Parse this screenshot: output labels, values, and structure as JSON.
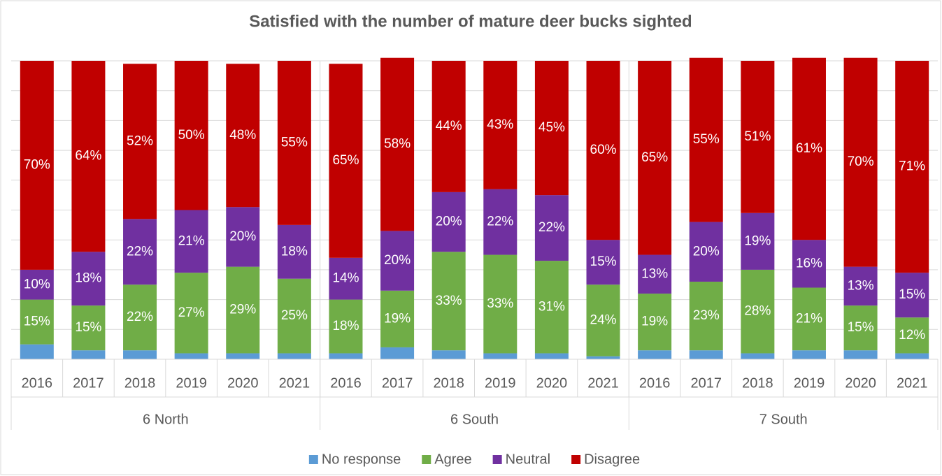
{
  "chart_data": {
    "type": "stacked_bar_100",
    "title": "Satisfied with the number of mature deer bucks sighted",
    "categories": [
      "2016",
      "2017",
      "2018",
      "2019",
      "2020",
      "2021",
      "2016",
      "2017",
      "2018",
      "2019",
      "2020",
      "2021",
      "2016",
      "2017",
      "2018",
      "2019",
      "2020",
      "2021"
    ],
    "groups": [
      "6 North",
      "6 South",
      "7 South"
    ],
    "series": [
      {
        "name": "No response",
        "color": "#5b9bd5",
        "values": [
          5,
          3,
          3,
          2,
          2,
          2,
          2,
          4,
          3,
          2,
          2,
          1,
          3,
          3,
          2,
          3,
          3,
          2
        ]
      },
      {
        "name": "Agree",
        "color": "#70ad47",
        "values": [
          15,
          15,
          22,
          27,
          29,
          25,
          18,
          19,
          33,
          33,
          31,
          24,
          19,
          23,
          28,
          21,
          15,
          12
        ],
        "value_labels": [
          "15%",
          "15%",
          "22%",
          "27%",
          "29%",
          "25%",
          "18%",
          "19%",
          "33%",
          "33%",
          "31%",
          "24%",
          "19%",
          "23%",
          "28%",
          "21%",
          "15%",
          "12%"
        ]
      },
      {
        "name": "Neutral",
        "color": "#7030a0",
        "values": [
          10,
          18,
          22,
          21,
          20,
          18,
          14,
          20,
          20,
          22,
          22,
          15,
          13,
          20,
          19,
          16,
          13,
          15
        ],
        "value_labels": [
          "10%",
          "18%",
          "22%",
          "21%",
          "20%",
          "18%",
          "14%",
          "20%",
          "20%",
          "22%",
          "22%",
          "15%",
          "13%",
          "20%",
          "19%",
          "16%",
          "13%",
          "15%"
        ]
      },
      {
        "name": "Disagree",
        "color": "#c00000",
        "values": [
          70,
          64,
          52,
          50,
          48,
          55,
          65,
          58,
          44,
          43,
          45,
          60,
          65,
          55,
          51,
          61,
          70,
          71
        ],
        "value_labels": [
          "70%",
          "64%",
          "52%",
          "50%",
          "48%",
          "55%",
          "65%",
          "58%",
          "44%",
          "43%",
          "45%",
          "60%",
          "65%",
          "55%",
          "51%",
          "61%",
          "70%",
          "71%"
        ]
      }
    ],
    "ylim": [
      0,
      100
    ],
    "yticks": [
      0,
      10,
      20,
      30,
      40,
      50,
      60,
      70,
      80,
      90,
      100
    ],
    "grid": true,
    "legend": "bottom"
  }
}
